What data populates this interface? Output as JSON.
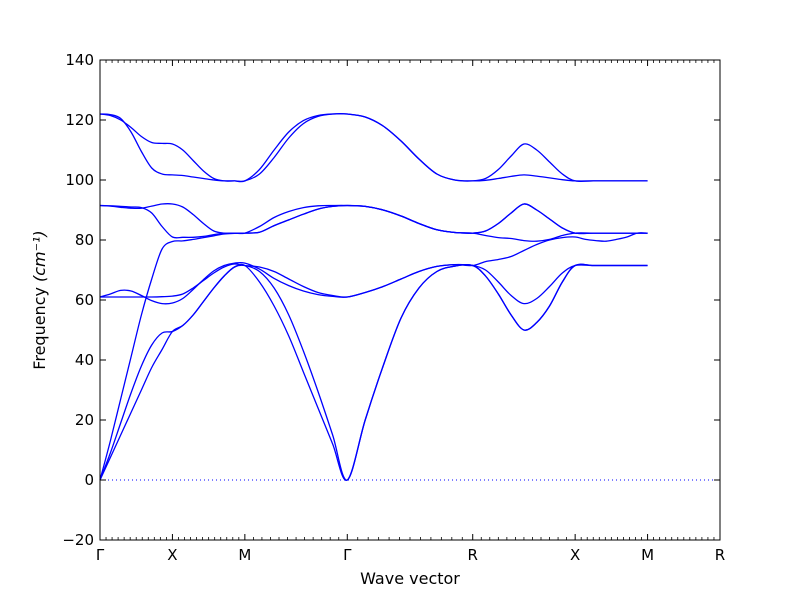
{
  "chart_data": {
    "type": "line",
    "title": "",
    "xlabel": "Wave vector",
    "ylabel": "Frequency",
    "ylabel_unit": "(cm⁻¹)",
    "ylim": [
      -20,
      140
    ],
    "y_ticks": [
      -20,
      0,
      20,
      40,
      60,
      80,
      100,
      120,
      140
    ],
    "x_ticks": [
      {
        "label": "Γ",
        "x": 0
      },
      {
        "label": "X",
        "x": 0.5
      },
      {
        "label": "M",
        "x": 1.0
      },
      {
        "label": "Γ",
        "x": 1.7071
      },
      {
        "label": "R",
        "x": 2.5731
      },
      {
        "label": "X",
        "x": 3.2802
      },
      {
        "label": "M",
        "x": 3.7802
      },
      {
        "label": "R",
        "x": 4.2802
      }
    ],
    "xlim": [
      0,
      4.2802
    ],
    "grid": false,
    "zero_line": {
      "y": 0,
      "style": "dotted"
    },
    "series_color": "#0000ff",
    "points_per_segment": 12,
    "series": [
      {
        "values": [
          [
            0.0,
            7.5,
            15.0,
            22.5,
            30.0,
            37.5,
            43.5,
            49.5
          ],
          [
            49.5,
            51.5,
            55.0,
            59.5,
            64.0,
            68.0,
            71.0,
            71.5
          ],
          [
            71.5,
            66.0,
            58.0,
            48.0,
            36.0,
            24.0,
            12.0,
            0.0
          ],
          [
            0.0,
            20.0,
            38.0,
            54.0,
            64.0,
            69.5,
            71.3,
            71.5
          ],
          [
            71.5,
            68.0,
            62.0,
            55.0,
            50.0,
            52.5,
            58.0,
            66.0,
            71.5
          ],
          [
            71.5,
            71.5,
            71.5,
            71.5,
            71.5
          ]
        ]
      },
      {
        "values": [
          [
            0.0,
            9.0,
            19.0,
            29.0,
            38.0,
            45.0,
            49.0,
            49.5
          ],
          [
            49.5,
            51.5,
            55.0,
            59.5,
            64.0,
            68.0,
            71.0,
            71.5
          ],
          [
            71.5,
            69.5,
            64.0,
            55.0,
            43.0,
            29.5,
            15.0,
            0.0
          ],
          [
            0.0,
            20.0,
            38.0,
            54.0,
            64.0,
            69.5,
            71.3,
            71.5
          ],
          [
            71.5,
            68.0,
            62.0,
            55.0,
            50.0,
            52.5,
            58.0,
            66.0,
            71.5
          ],
          [
            71.5,
            71.5,
            71.5,
            71.5,
            71.5
          ]
        ]
      },
      {
        "values": [
          [
            0.0,
            13.0,
            27.0,
            41.0,
            55.0,
            67.0,
            77.0,
            79.5
          ],
          [
            79.5,
            79.7,
            80.2,
            80.8,
            81.4,
            82.0,
            82.2,
            82.3
          ],
          [
            82.3,
            82.6,
            84.8,
            86.7,
            88.6,
            90.3,
            91.2,
            91.5
          ],
          [
            91.5,
            91.2,
            90.0,
            88.0,
            85.5,
            83.4,
            82.5,
            82.3
          ],
          [
            82.3,
            81.5,
            80.8,
            80.5,
            79.8,
            79.6,
            80.2,
            81.5,
            82.3
          ],
          [
            82.3,
            82.3,
            82.3,
            82.3,
            82.3
          ]
        ]
      },
      {
        "values": [
          [
            61.0,
            62.0,
            63.2,
            63.0,
            61.5,
            59.8,
            58.8,
            59.0
          ],
          [
            59.0,
            60.5,
            63.5,
            66.8,
            69.7,
            71.5,
            72.3,
            72.3
          ],
          [
            72.3,
            70.3,
            67.2,
            64.8,
            63.0,
            61.8,
            61.2,
            61.0
          ],
          [
            61.0,
            62.5,
            64.5,
            67.0,
            69.5,
            71.2,
            71.8,
            71.5
          ],
          [
            71.5,
            70.0,
            66.0,
            61.5,
            58.8,
            60.5,
            64.5,
            69.0,
            71.5
          ],
          [
            71.5,
            71.5,
            71.5,
            71.5,
            71.5
          ]
        ]
      },
      {
        "values": [
          [
            61.0,
            61.0,
            61.0,
            61.0,
            61.0,
            61.0,
            61.1,
            61.3
          ],
          [
            61.3,
            62.0,
            64.0,
            66.5,
            69.0,
            71.0,
            72.0,
            71.5
          ],
          [
            71.5,
            71.0,
            69.5,
            67.0,
            64.5,
            62.5,
            61.5,
            61.0
          ],
          [
            61.0,
            62.5,
            64.5,
            67.0,
            69.5,
            71.2,
            71.8,
            71.5
          ],
          [
            71.5,
            72.8,
            73.5,
            74.5,
            76.5,
            78.5,
            80.0,
            80.8,
            81.0
          ],
          [
            81.0,
            80.2,
            79.8,
            79.6,
            80.2,
            81.0,
            82.3,
            82.3
          ]
        ]
      },
      {
        "values": [
          [
            91.5,
            91.3,
            90.9,
            90.6,
            90.6,
            91.3,
            92.0,
            92.0
          ],
          [
            92.0,
            91.0,
            88.5,
            85.5,
            83.0,
            82.3,
            82.3,
            82.3
          ],
          [
            82.3,
            82.6,
            84.8,
            86.7,
            88.6,
            90.3,
            91.2,
            91.5
          ],
          [
            91.5,
            91.2,
            90.0,
            88.0,
            85.5,
            83.4,
            82.5,
            82.3
          ],
          [
            82.3,
            83.0,
            85.5,
            89.0,
            92.0,
            90.0,
            87.0,
            84.0,
            82.3
          ],
          [
            82.3,
            82.3,
            82.3,
            82.3,
            82.3
          ]
        ]
      },
      {
        "values": [
          [
            91.5,
            91.4,
            91.2,
            91.0,
            90.8,
            89.0,
            84.5,
            81.0
          ],
          [
            81.0,
            80.9,
            80.9,
            81.2,
            81.8,
            82.2,
            82.3,
            82.3
          ],
          [
            82.3,
            84.5,
            87.5,
            89.5,
            90.8,
            91.4,
            91.5,
            91.5
          ],
          [
            91.5,
            91.2,
            90.0,
            88.0,
            85.5,
            83.4,
            82.5,
            82.3
          ],
          [
            82.3,
            83.0,
            85.5,
            89.0,
            92.0,
            90.0,
            87.0,
            84.0,
            82.3
          ],
          [
            82.3,
            82.3,
            82.3,
            82.3,
            82.3
          ]
        ]
      },
      {
        "values": [
          [
            122.0,
            121.5,
            120.0,
            117.5,
            114.5,
            112.5,
            112.2,
            112.0
          ],
          [
            112.0,
            110.0,
            106.5,
            103.0,
            100.5,
            99.7,
            99.7,
            99.7
          ],
          [
            99.7,
            103.5,
            110.0,
            116.0,
            119.8,
            121.5,
            122.0,
            122.0
          ],
          [
            122.0,
            121.0,
            118.0,
            113.0,
            107.0,
            102.0,
            100.0,
            99.7
          ],
          [
            99.7,
            100.5,
            103.5,
            108.0,
            112.0,
            110.0,
            106.0,
            102.0,
            99.7
          ],
          [
            99.7,
            99.7,
            99.7,
            99.7,
            99.7
          ]
        ]
      },
      {
        "values": [
          [
            122.0,
            121.8,
            120.5,
            116.0,
            109.5,
            104.0,
            102.0,
            101.7
          ],
          [
            101.7,
            101.5,
            101.0,
            100.5,
            100.0,
            99.7,
            99.7,
            99.7
          ],
          [
            99.7,
            102.0,
            107.5,
            114.0,
            118.8,
            121.2,
            122.0,
            122.0
          ],
          [
            122.0,
            121.0,
            118.0,
            113.0,
            107.0,
            102.0,
            100.0,
            99.7
          ],
          [
            99.7,
            99.9,
            100.5,
            101.2,
            101.7,
            101.3,
            100.7,
            100.1,
            99.7
          ],
          [
            99.7,
            99.7,
            99.7,
            99.7,
            99.7
          ]
        ]
      }
    ]
  }
}
